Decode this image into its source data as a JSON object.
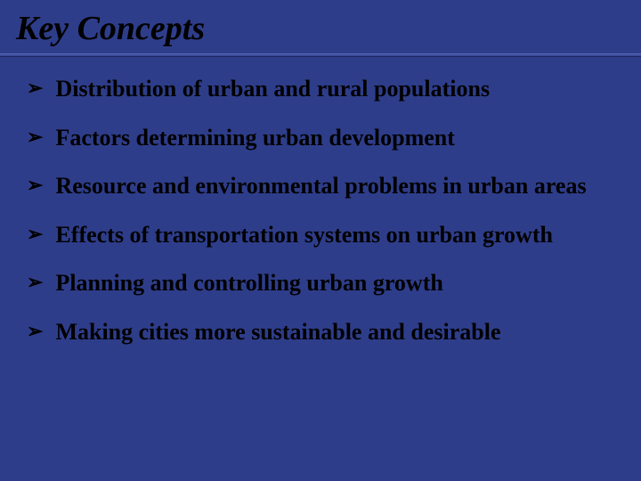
{
  "slide": {
    "title": "Key Concepts",
    "background_color": "#2e3d8a",
    "title_color": "#000000",
    "title_fontsize": 38,
    "title_font_style": "italic",
    "title_font_weight": "bold",
    "underline_color": "#3b4a9a",
    "bullet_marker": "➢",
    "bullet_color": "#000000",
    "bullet_fontsize": 26,
    "bullet_font_weight": "bold",
    "bullet_font_family": "Times New Roman",
    "bullets": [
      "Distribution of urban and rural populations",
      "Factors determining urban development",
      "Resource and environmental problems in urban areas",
      "Effects of transportation systems on urban growth",
      "Planning and controlling urban growth",
      "Making cities more sustainable and desirable"
    ]
  }
}
